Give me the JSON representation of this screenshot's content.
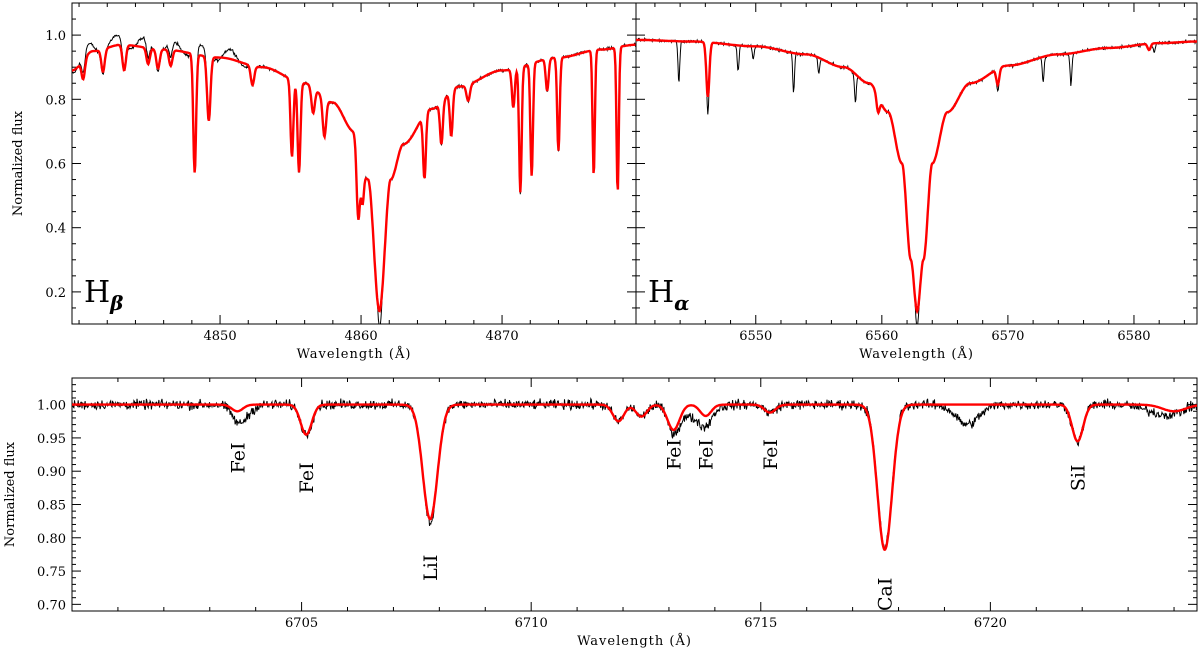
{
  "colors": {
    "observed": "#000000",
    "model": "#ff0000",
    "axes": "#000000"
  },
  "chart_data": [
    {
      "type": "line",
      "panel": "top-left",
      "panel_label": "H",
      "panel_label_sub": "β",
      "xlabel": "Wavelength  (Å)",
      "ylabel": "Normalized flux",
      "xlim": [
        4839.5,
        4879.5
      ],
      "ylim": [
        0.1,
        1.1
      ],
      "xticks": [
        4850,
        4860,
        4870
      ],
      "yticks": [
        0.2,
        0.4,
        0.6,
        0.8,
        1.0
      ],
      "ytick_labels": [
        "0.2",
        "0.4",
        "0.6",
        "0.8",
        "1.0"
      ],
      "grid": false,
      "continuum": [
        [
          4839.5,
          0.89
        ],
        [
          4841,
          0.95
        ],
        [
          4843,
          0.97
        ],
        [
          4846,
          0.955
        ],
        [
          4850,
          0.93
        ],
        [
          4853,
          0.9
        ],
        [
          4856,
          0.85
        ],
        [
          4858,
          0.79
        ],
        [
          4859.5,
          0.7
        ],
        [
          4860.5,
          0.55
        ],
        [
          4861.3,
          0.14
        ],
        [
          4862.1,
          0.55
        ],
        [
          4863,
          0.66
        ],
        [
          4865,
          0.77
        ],
        [
          4867,
          0.84
        ],
        [
          4870,
          0.89
        ],
        [
          4874,
          0.93
        ],
        [
          4877,
          0.955
        ],
        [
          4879.5,
          0.97
        ]
      ],
      "lines": [
        [
          4840.3,
          0.06,
          0.12
        ],
        [
          4841.7,
          0.07,
          0.12
        ],
        [
          4843.2,
          0.08,
          0.12
        ],
        [
          4844.9,
          0.05,
          0.12
        ],
        [
          4845.6,
          0.06,
          0.12
        ],
        [
          4846.5,
          0.05,
          0.12
        ],
        [
          4848.2,
          0.37,
          0.1
        ],
        [
          4849.2,
          0.2,
          0.12
        ],
        [
          4852.3,
          0.06,
          0.12
        ],
        [
          4855.1,
          0.24,
          0.1
        ],
        [
          4855.6,
          0.28,
          0.1
        ],
        [
          4856.6,
          0.08,
          0.12
        ],
        [
          4857.4,
          0.12,
          0.12
        ],
        [
          4859.8,
          0.24,
          0.12
        ],
        [
          4860.1,
          0.12,
          0.1
        ],
        [
          4864.5,
          0.2,
          0.1
        ],
        [
          4865.7,
          0.13,
          0.1
        ],
        [
          4866.4,
          0.14,
          0.1
        ],
        [
          4867.6,
          0.05,
          0.12
        ],
        [
          4870.8,
          0.12,
          0.1
        ],
        [
          4871.3,
          0.39,
          0.09
        ],
        [
          4872.1,
          0.35,
          0.09
        ],
        [
          4873.2,
          0.1,
          0.1
        ],
        [
          4874.0,
          0.29,
          0.09
        ],
        [
          4876.5,
          0.39,
          0.08
        ],
        [
          4878.2,
          0.45,
          0.08
        ]
      ],
      "series": [
        {
          "role": "observed"
        },
        {
          "role": "model"
        }
      ]
    },
    {
      "type": "line",
      "panel": "top-right",
      "panel_label": "H",
      "panel_label_sub": "α",
      "xlabel": "Wavelength  (Å)",
      "ylabel": "",
      "xlim": [
        6540.5,
        6585
      ],
      "ylim": [
        0.1,
        1.1
      ],
      "xticks": [
        6550,
        6560,
        6570,
        6580
      ],
      "yticks": [
        0.2,
        0.4,
        0.6,
        0.8,
        1.0
      ],
      "ytick_labels": [
        "",
        "",
        "",
        "",
        ""
      ],
      "grid": false,
      "continuum": [
        [
          6540.5,
          0.985
        ],
        [
          6545,
          0.98
        ],
        [
          6550,
          0.965
        ],
        [
          6554,
          0.94
        ],
        [
          6557,
          0.9
        ],
        [
          6559,
          0.85
        ],
        [
          6560.5,
          0.76
        ],
        [
          6561.6,
          0.6
        ],
        [
          6562.3,
          0.3
        ],
        [
          6562.8,
          0.14
        ],
        [
          6563.3,
          0.3
        ],
        [
          6564.0,
          0.6
        ],
        [
          6565.2,
          0.76
        ],
        [
          6567,
          0.85
        ],
        [
          6570,
          0.905
        ],
        [
          6574,
          0.94
        ],
        [
          6578,
          0.96
        ],
        [
          6582,
          0.975
        ],
        [
          6585,
          0.98
        ]
      ],
      "lines": [
        [
          6543.9,
          0.0,
          0.08
        ],
        [
          6546.2,
          0.17,
          0.12
        ],
        [
          6548.6,
          0.0,
          0.08
        ],
        [
          6553.0,
          0.0,
          0.08
        ],
        [
          6555.0,
          0.0,
          0.08
        ],
        [
          6559.7,
          0.05,
          0.12
        ],
        [
          6569.2,
          0.05,
          0.12
        ],
        [
          6572.8,
          0.0,
          0.08
        ],
        [
          6575.0,
          0.0,
          0.08
        ],
        [
          6581.2,
          0.02,
          0.12
        ]
      ],
      "observed_only_lines": [
        [
          6543.9,
          0.13,
          0.07
        ],
        [
          6546.2,
          0.05,
          0.07
        ],
        [
          6548.6,
          0.08,
          0.07
        ],
        [
          6549.8,
          0.04,
          0.07
        ],
        [
          6553.0,
          0.12,
          0.07
        ],
        [
          6555.0,
          0.05,
          0.07
        ],
        [
          6557.9,
          0.09,
          0.07
        ],
        [
          6569.2,
          0.02,
          0.07
        ],
        [
          6572.8,
          0.08,
          0.07
        ],
        [
          6575.0,
          0.1,
          0.07
        ],
        [
          6581.6,
          0.03,
          0.08
        ]
      ],
      "series": [
        {
          "role": "observed"
        },
        {
          "role": "model"
        }
      ]
    },
    {
      "type": "line",
      "panel": "bottom",
      "xlabel": "Wavelength  (Å)",
      "ylabel": "Normalized flux",
      "xlim": [
        6700,
        6724.5
      ],
      "ylim": [
        0.69,
        1.04
      ],
      "xticks": [
        6705,
        6710,
        6715,
        6720
      ],
      "yticks": [
        0.7,
        0.75,
        0.8,
        0.85,
        0.9,
        0.95,
        1.0
      ],
      "ytick_labels": [
        "0.70",
        "0.75",
        "0.80",
        "0.85",
        "0.90",
        "0.95",
        "1.00"
      ],
      "grid": false,
      "lines": [
        [
          6703.6,
          0.01,
          0.12
        ],
        [
          6705.1,
          0.045,
          0.12
        ],
        [
          6707.8,
          0.172,
          0.16
        ],
        [
          6711.9,
          0.025,
          0.12
        ],
        [
          6712.4,
          0.018,
          0.12
        ],
        [
          6713.1,
          0.038,
          0.13
        ],
        [
          6713.8,
          0.017,
          0.12
        ],
        [
          6715.2,
          0.012,
          0.12
        ],
        [
          6717.7,
          0.218,
          0.16
        ],
        [
          6721.9,
          0.055,
          0.12
        ],
        [
          6724.0,
          0.01,
          0.25
        ]
      ],
      "observed_extra_dips": [
        [
          6703.7,
          0.02,
          0.18
        ],
        [
          6713.6,
          0.02,
          0.3
        ],
        [
          6719.5,
          0.03,
          0.25
        ],
        [
          6723.6,
          0.01,
          0.3
        ]
      ],
      "annotations": [
        {
          "text": "FeI",
          "x": 6703.6,
          "y": 0.92
        },
        {
          "text": "FeI",
          "x": 6705.1,
          "y": 0.89
        },
        {
          "text": "LiI",
          "x": 6707.8,
          "y": 0.755
        },
        {
          "text": "FeI",
          "x": 6713.1,
          "y": 0.925
        },
        {
          "text": "FeI",
          "x": 6713.8,
          "y": 0.925
        },
        {
          "text": "FeI",
          "x": 6715.2,
          "y": 0.925
        },
        {
          "text": "CaI",
          "x": 6717.7,
          "y": 0.715
        },
        {
          "text": "SiI",
          "x": 6721.9,
          "y": 0.89
        }
      ],
      "series": [
        {
          "role": "observed"
        },
        {
          "role": "model"
        }
      ]
    }
  ]
}
